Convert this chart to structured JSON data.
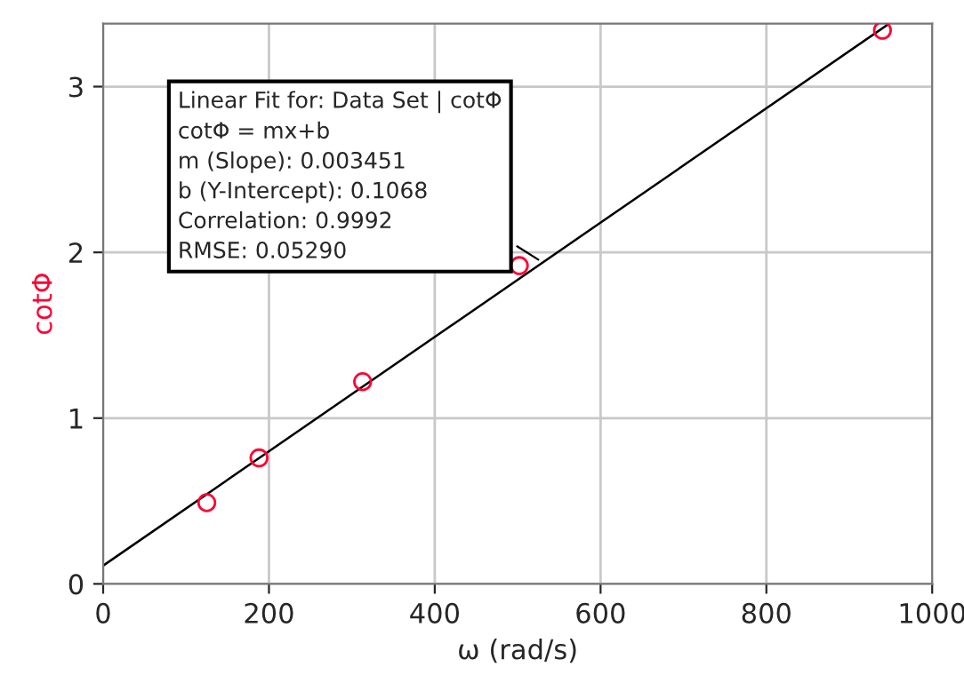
{
  "chart_data": {
    "type": "scatter",
    "xlabel": "ω (rad/s)",
    "ylabel": "cotΦ",
    "x": [
      125,
      188,
      313,
      502,
      940
    ],
    "series": [
      {
        "color": "#ff0033",
        "marker": "circle",
        "values": [
          0.49,
          0.76,
          1.22,
          1.92,
          3.34
        ]
      },
      {
        "type": "line",
        "color": "#000000",
        "x": [
          0,
          948
        ],
        "values": [
          0.11,
          3.38
        ]
      }
    ],
    "xlim": [
      0,
      1000
    ],
    "ylim": [
      0,
      3.38
    ],
    "xticks": [
      0,
      200,
      400,
      600,
      800,
      1000
    ],
    "yticks": [
      0,
      1,
      2,
      3
    ],
    "grid": true,
    "annotations": [
      {
        "text": "Linear Fit for: Data Set | cotΦ\ncotΦ = mx+b\nm (Slope): 0.003451\nb (Y-Intercept): 0.1068\nCorrelation: 0.9992\nRMSE: 0.05290",
        "x": 530,
        "y": 1.94
      }
    ]
  }
}
